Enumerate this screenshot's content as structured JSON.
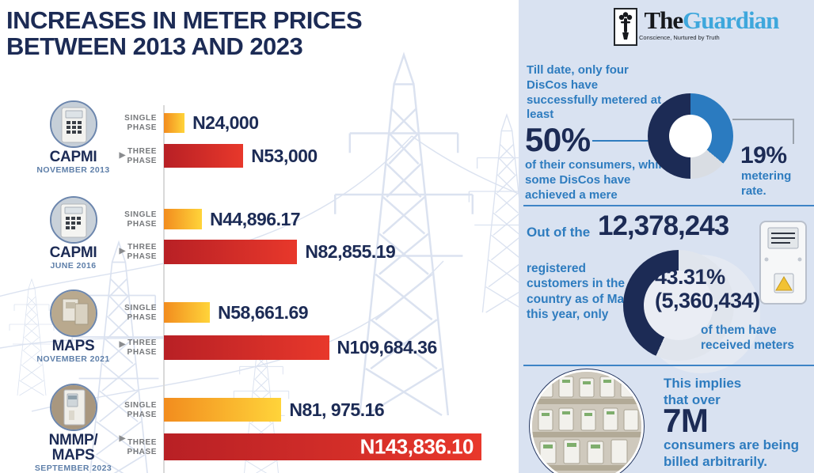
{
  "title": {
    "line1": "INCREASES IN METER PRICES",
    "line2": "BETWEEN 2013 AND 2023"
  },
  "chart_data": {
    "type": "bar",
    "orientation": "horizontal",
    "unit": "Naira (N)",
    "phase_labels": {
      "single": "SINGLE PHASE",
      "three": "THREE PHASE"
    },
    "groups": [
      {
        "program": "CAPMI",
        "program2": "",
        "date": "NOVEMBER 2013",
        "single_value": 24000,
        "three_value": 53000,
        "single_label": "N24,000",
        "three_label": "N53,000",
        "single_pct": 6.5,
        "three_pct": 25
      },
      {
        "program": "CAPMI",
        "program2": "",
        "date": "JUNE 2016",
        "single_value": 44896.17,
        "three_value": 82855.19,
        "single_label": "N44,896.17",
        "three_label": "N82,855.19",
        "single_pct": 12,
        "three_pct": 42
      },
      {
        "program": "MAPS",
        "program2": "",
        "date": "NOVEMBER 2021",
        "single_value": 58661.69,
        "three_value": 109684.36,
        "single_label": "N58,661.69",
        "three_label": "N109,684.36",
        "single_pct": 14.5,
        "three_pct": 52
      },
      {
        "program": "NMMP/",
        "program2": "MAPS",
        "date": "SEPTEMBER 2023",
        "single_value": 81975.16,
        "three_value": 143836.1,
        "single_label": "N81, 975.16",
        "three_label": "N143,836.10",
        "single_pct": 37,
        "three_pct": 100
      }
    ],
    "bar_colors": {
      "single_start": "#F28C1E",
      "single_end": "#FFD43A",
      "three_start": "#B82025",
      "three_end": "#E8382B"
    }
  },
  "panel": {
    "logo": {
      "the": "The",
      "guardian": "Guardian",
      "tagline": "Conscience, Nurtured by Truth"
    },
    "section1": {
      "intro": "Till date, only four DisCos have successfully metered at least",
      "big_stat": "50%",
      "outro": "of their consumers, while some DisCos have achieved a mere",
      "side_stat": "19%",
      "side_label": "metering rate.",
      "donut": {
        "type": "pie",
        "segments": [
          {
            "name": "discos-metered-at-least-50pct",
            "color": "#1C2B55",
            "start_deg": 180,
            "end_deg": 360
          },
          {
            "name": "mid-metering",
            "color": "#2B7BC0",
            "start_deg": 0,
            "end_deg": 130
          },
          {
            "name": "low-metering-19pct",
            "color": "#D9DDE3",
            "start_deg": 130,
            "end_deg": 180
          }
        ]
      }
    },
    "section2": {
      "intro": "Out of the",
      "big_stat": "12,378,243",
      "left_text": "registered customers in the country as of March this year, only",
      "gauge_pct": "43.31%",
      "gauge_count": "(5,360,434)",
      "outro": "of them have received meters",
      "gauge": {
        "value_pct": 43.31,
        "fill": "#1C2B55",
        "track": "#E0E5ED"
      }
    },
    "section3": {
      "intro": "This implies that over",
      "big_stat": "7M",
      "outro": "consumers are being billed arbitrarily."
    }
  },
  "colors": {
    "navy": "#1C2B55",
    "blue_text": "#2E7CBF",
    "panel_bg": "#D9E2F1",
    "divider": "#3E84C6",
    "label_gray": "#76787B",
    "date_slate": "#5E7FA9",
    "guardian_blue": "#3EA7DC",
    "background_art": "#C7D3E8"
  }
}
